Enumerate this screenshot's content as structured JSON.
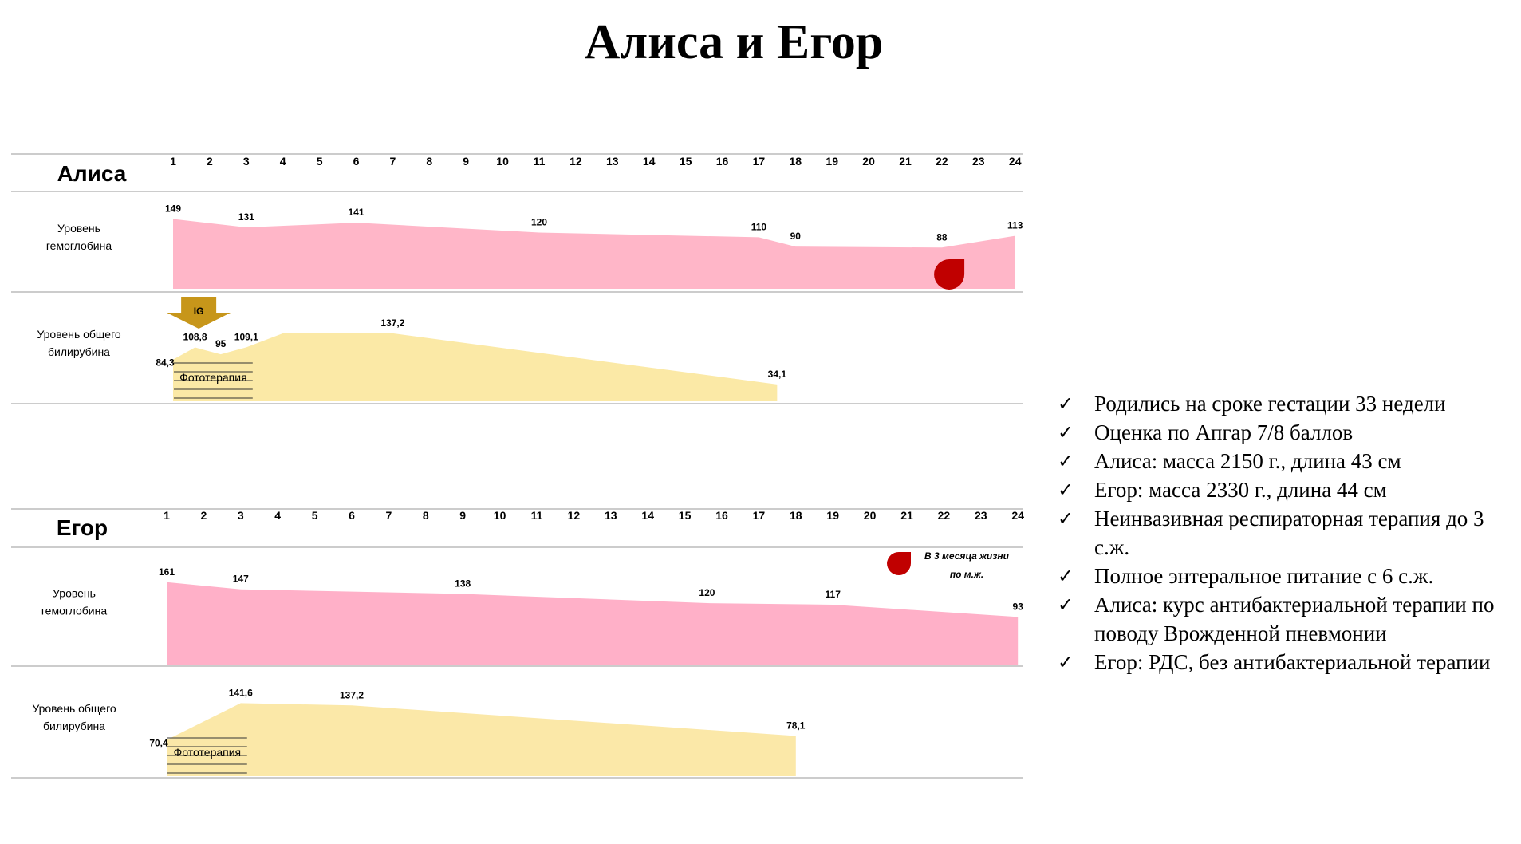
{
  "title": "Алиса и Егор",
  "chart_data": [
    {
      "type": "area",
      "patient": "Алиса",
      "x": [
        1,
        2,
        3,
        4,
        5,
        6,
        7,
        8,
        9,
        10,
        11,
        12,
        13,
        14,
        15,
        16,
        17,
        18,
        19,
        20,
        21,
        22,
        23,
        24
      ],
      "series": [
        {
          "name": "Уровень гемоглобина",
          "color": "#ffb6c8",
          "points": [
            {
              "day": 1,
              "value": 149,
              "label": "149"
            },
            {
              "day": 3,
              "value": 131,
              "label": "131"
            },
            {
              "day": 6,
              "value": 141,
              "label": "141"
            },
            {
              "day": 11,
              "value": 120,
              "label": "120"
            },
            {
              "day": 17,
              "value": 110,
              "label": "110"
            },
            {
              "day": 18,
              "value": 90,
              "label": "90"
            },
            {
              "day": 22,
              "value": 88,
              "label": "88"
            },
            {
              "day": 24,
              "value": 113,
              "label": "113"
            }
          ],
          "ylim": [
            0,
            160
          ]
        },
        {
          "name": "Уровень общего билирубина",
          "color": "#fbe9a6",
          "points": [
            {
              "day": 1,
              "value": 84.3,
              "label": "84,3"
            },
            {
              "day": 1.6,
              "value": 108.8,
              "label": "108,8"
            },
            {
              "day": 2.3,
              "value": 95,
              "label": "95"
            },
            {
              "day": 3,
              "value": 109.1,
              "label": "109,1"
            },
            {
              "day": 4,
              "value": 137.2,
              "label": ""
            },
            {
              "day": 7,
              "value": 137.2,
              "label": "137,2"
            },
            {
              "day": 17.5,
              "value": 34.1,
              "label": "34,1"
            }
          ],
          "ylim": [
            0,
            150
          ]
        }
      ],
      "phototherapy": {
        "label": "Фототерапия",
        "from_day": 1,
        "to_day": 3
      },
      "ig_marker": {
        "label": "IG",
        "day": 1.7
      },
      "transfusion_marker_day": 22.2
    },
    {
      "type": "area",
      "patient": "Егор",
      "x": [
        1,
        2,
        3,
        4,
        5,
        6,
        7,
        8,
        9,
        10,
        11,
        12,
        13,
        14,
        15,
        16,
        17,
        18,
        19,
        20,
        21,
        22,
        23,
        24
      ],
      "series": [
        {
          "name": "Уровень гемоглобина",
          "color": "#ffb0c8",
          "points": [
            {
              "day": 1,
              "value": 161,
              "label": "161"
            },
            {
              "day": 3,
              "value": 147,
              "label": "147"
            },
            {
              "day": 9,
              "value": 138,
              "label": "138"
            },
            {
              "day": 15.6,
              "value": 120,
              "label": "120"
            },
            {
              "day": 19,
              "value": 117,
              "label": "117"
            },
            {
              "day": 24,
              "value": 93,
              "label": "93"
            }
          ],
          "ylim": [
            0,
            170
          ]
        },
        {
          "name": "Уровень общего билирубина",
          "color": "#fbe8a8",
          "points": [
            {
              "day": 1,
              "value": 70.4,
              "label": "70,4"
            },
            {
              "day": 3,
              "value": 141.6,
              "label": "141,6"
            },
            {
              "day": 6,
              "value": 137.2,
              "label": "137,2"
            },
            {
              "day": 18,
              "value": 78.1,
              "label": "78,1"
            }
          ],
          "ylim": [
            0,
            150
          ]
        }
      ],
      "phototherapy": {
        "label": "Фототерапия",
        "from_day": 1,
        "to_day": 3
      },
      "transfusion_note": {
        "line1": "В 3 месяца жизни",
        "line2": "по м.ж."
      }
    }
  ],
  "facts": [
    "Родились на сроке гестации 33 недели",
    "Оценка по Апгар 7/8 баллов",
    "Алиса: масса 2150 г.,  длина 43 см",
    "Егор: масса  2330 г., длина  44 см",
    "Неинвазивная респираторная терапия до 3 с.ж.",
    "Полное энтеральное питание с 6 с.ж.",
    "Алиса:  курс антибактериальной терапии  по поводу Врожденной пневмонии",
    "Егор: РДС, без антибактериальной терапии"
  ],
  "check_glyph": "✓"
}
